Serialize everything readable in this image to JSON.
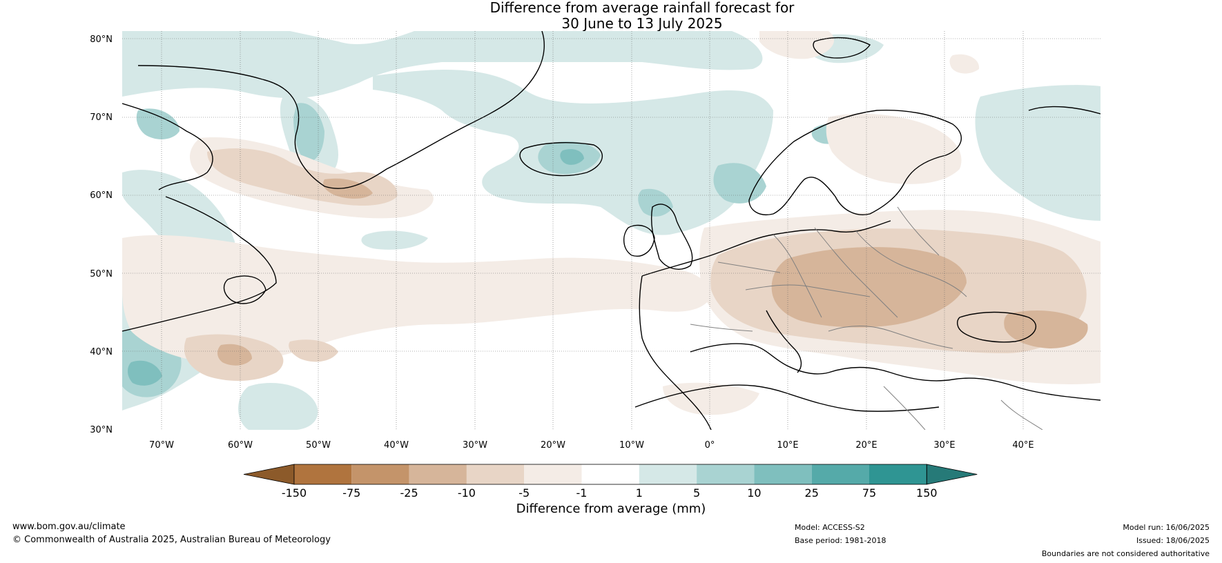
{
  "title": {
    "line1": "Difference from average rainfall forecast for",
    "line2": "30 June to 13 July 2025"
  },
  "map": {
    "lat_labels": [
      "80°N",
      "70°N",
      "60°N",
      "50°N",
      "40°N",
      "30°N"
    ],
    "lon_labels": [
      "70°W",
      "60°W",
      "50°W",
      "40°W",
      "30°W",
      "20°W",
      "10°W",
      "0°",
      "10°E",
      "20°E",
      "30°E",
      "40°E"
    ]
  },
  "colorbar": {
    "title": "Difference from average (mm)",
    "ticks": [
      "-150",
      "-75",
      "-25",
      "-10",
      "-5",
      "-1",
      "1",
      "5",
      "10",
      "25",
      "75",
      "150"
    ],
    "colors": [
      "#8c5a2a",
      "#b0743e",
      "#c4946a",
      "#d6b59a",
      "#e8d5c6",
      "#f4ece6",
      "#ffffff",
      "#d5e8e7",
      "#a9d3d2",
      "#7fbfbe",
      "#55aaa9",
      "#2f9593",
      "#267a78"
    ]
  },
  "footer": {
    "website": "www.bom.gov.au/climate",
    "copyright": "© Commonwealth of Australia 2025, Australian Bureau of Meteorology",
    "model": "Model: ACCESS-S2",
    "base_period": "Base period: 1981-2018",
    "model_run": "Model run: 16/06/2025",
    "issued": "Issued: 18/06/2025",
    "disclaimer": "Boundaries are not considered authoritative"
  }
}
